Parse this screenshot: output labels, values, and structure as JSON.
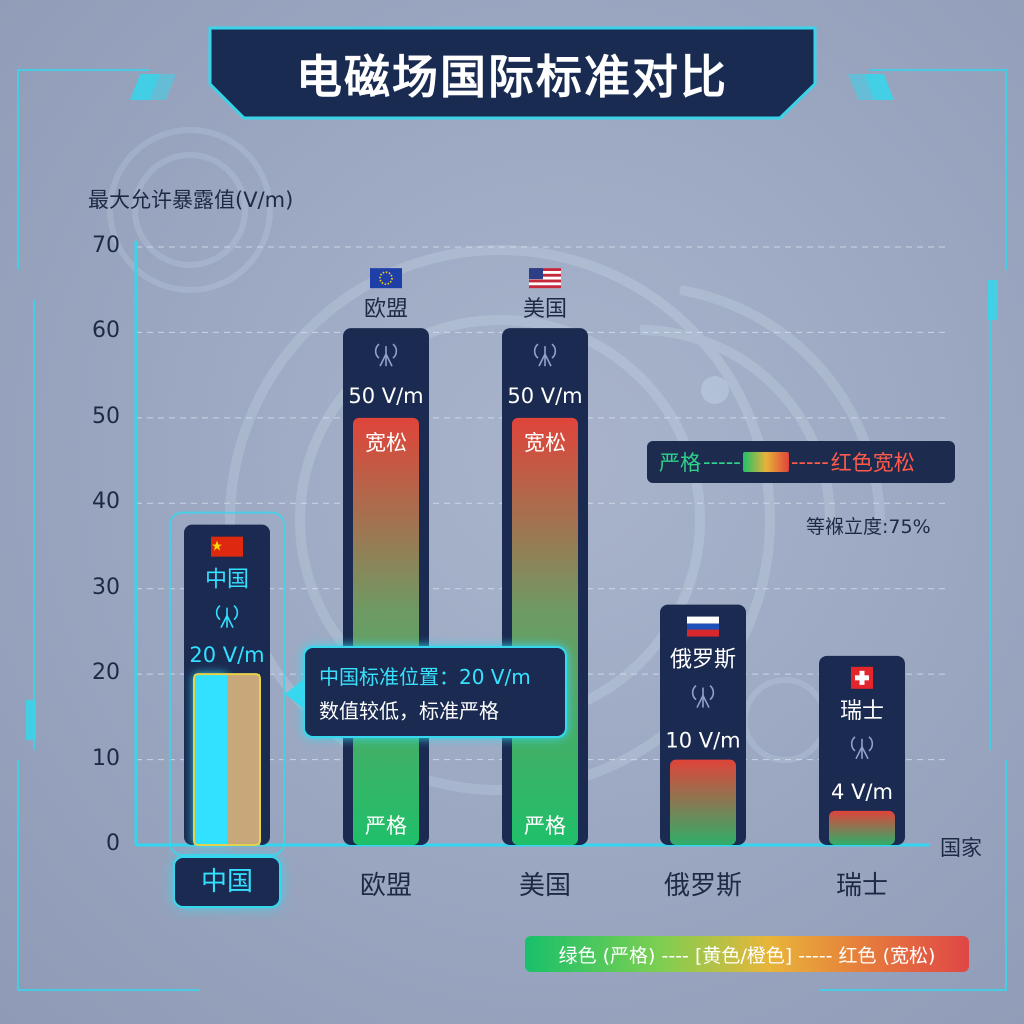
{
  "title": "电磁场国际标准对比",
  "chart_data": {
    "type": "bar",
    "ylabel": "最大允许暴露值(V/m)",
    "xlabel": "国家",
    "ylim": [
      0,
      70
    ],
    "yticks": [
      "0",
      "10",
      "20",
      "30",
      "40",
      "50",
      "60",
      "70"
    ],
    "categories": [
      "中国",
      "欧盟",
      "美国",
      "俄罗斯",
      "瑞士"
    ],
    "values": [
      20,
      50,
      50,
      10,
      4
    ],
    "value_labels": [
      "20 V/m",
      "50 V/m",
      "50 V/m",
      "10 V/m",
      "4 V/m"
    ],
    "bar_top_text": [
      "",
      "宽松",
      "宽松",
      "",
      ""
    ],
    "bar_bottom_text": [
      "",
      "严格",
      "严格",
      "",
      ""
    ],
    "highlighted": "中国",
    "grid": true,
    "colors": {
      "strict": "#1fc06a",
      "medium": "#e7b33a",
      "loose": "#e0443a",
      "highlight": "#33e0ff",
      "china_fill_right": "#c8a77a"
    }
  },
  "callout": {
    "line1": "中国标准位置：20 V/m",
    "line2": "数值较低，标准严格"
  },
  "legend_top": {
    "strict": "严格",
    "dash": "-----",
    "loose": "红色宽松"
  },
  "smoothness_note": "等褓立度:75%",
  "legend_bottom": "绿色 (严格) ---- [黄色/橙色] ----- 红色 (宽松)",
  "icons": [
    "flag-cn-icon",
    "flag-eu-icon",
    "flag-us-icon",
    "flag-ru-icon",
    "flag-ch-icon",
    "antenna-icon",
    "router-icon",
    "tower-icon",
    "signal-icon"
  ]
}
